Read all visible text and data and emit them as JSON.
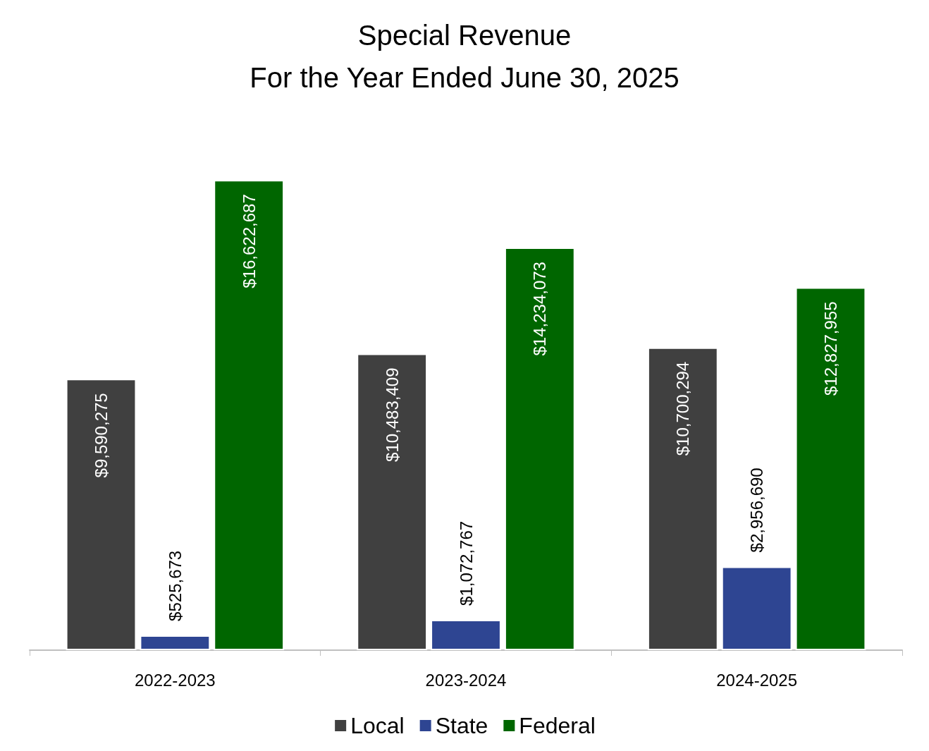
{
  "chart_data": {
    "type": "bar",
    "title": "Special Revenue",
    "subtitle": "For the Year Ended June 30, 2025",
    "categories": [
      "2022-2023",
      "2023-2024",
      "2024-2025"
    ],
    "series": [
      {
        "name": "Local",
        "color": "#404040",
        "values": [
          9590275,
          10483409,
          10700294
        ],
        "value_labels": [
          "$9,590,275",
          "$10,483,409",
          "$10,700,294"
        ]
      },
      {
        "name": "State",
        "color": "#2e4592",
        "values": [
          525673,
          1072767,
          2956690
        ],
        "value_labels": [
          "$525,673",
          "$1,072,767",
          "$2,956,690"
        ]
      },
      {
        "name": "Federal",
        "color": "#006600",
        "values": [
          16622687,
          14234073,
          12827955
        ],
        "value_labels": [
          "$16,622,687",
          "$14,234,073",
          "$12,827,955"
        ]
      }
    ],
    "legend": "bottom",
    "grid": false,
    "tick_labels": "x"
  }
}
